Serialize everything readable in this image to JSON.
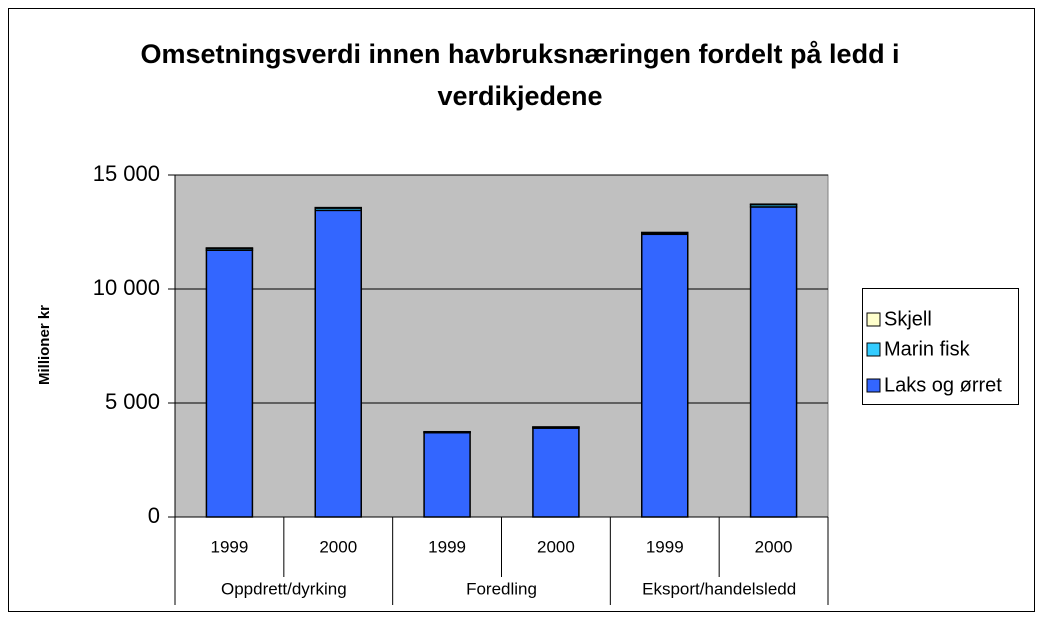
{
  "chart_data": {
    "type": "stacked_bar",
    "title": "Omsetningsverdi innen havbruksnæringen fordelt på ledd i verdikjedene",
    "ylabel": "Millioner kr",
    "categories": [
      "1999",
      "2000",
      "1999",
      "2000",
      "1999",
      "2000"
    ],
    "groups": [
      "Oppdrett/dyrking",
      "Foredling",
      "Eksport/handelsledd"
    ],
    "series": [
      {
        "name": "Laks og ørret",
        "color": "#3366ff",
        "values": [
          11700,
          13450,
          3700,
          3900,
          12400,
          13600
        ]
      },
      {
        "name": "Marin fisk",
        "color": "#33ccff",
        "values": [
          80,
          100,
          30,
          40,
          60,
          100
        ]
      },
      {
        "name": "Skjell",
        "color": "#ffffcc",
        "values": [
          20,
          20,
          10,
          10,
          20,
          20
        ]
      }
    ],
    "ylim": [
      0,
      15000
    ],
    "yticks": [
      0,
      {
        "value": 5000,
        "label": "5 000"
      },
      {
        "value": 10000,
        "label": "10 000"
      },
      {
        "value": 15000,
        "label": "15 000"
      }
    ],
    "grid": true,
    "legend": "right",
    "plot_background": "#c0c0c0"
  }
}
